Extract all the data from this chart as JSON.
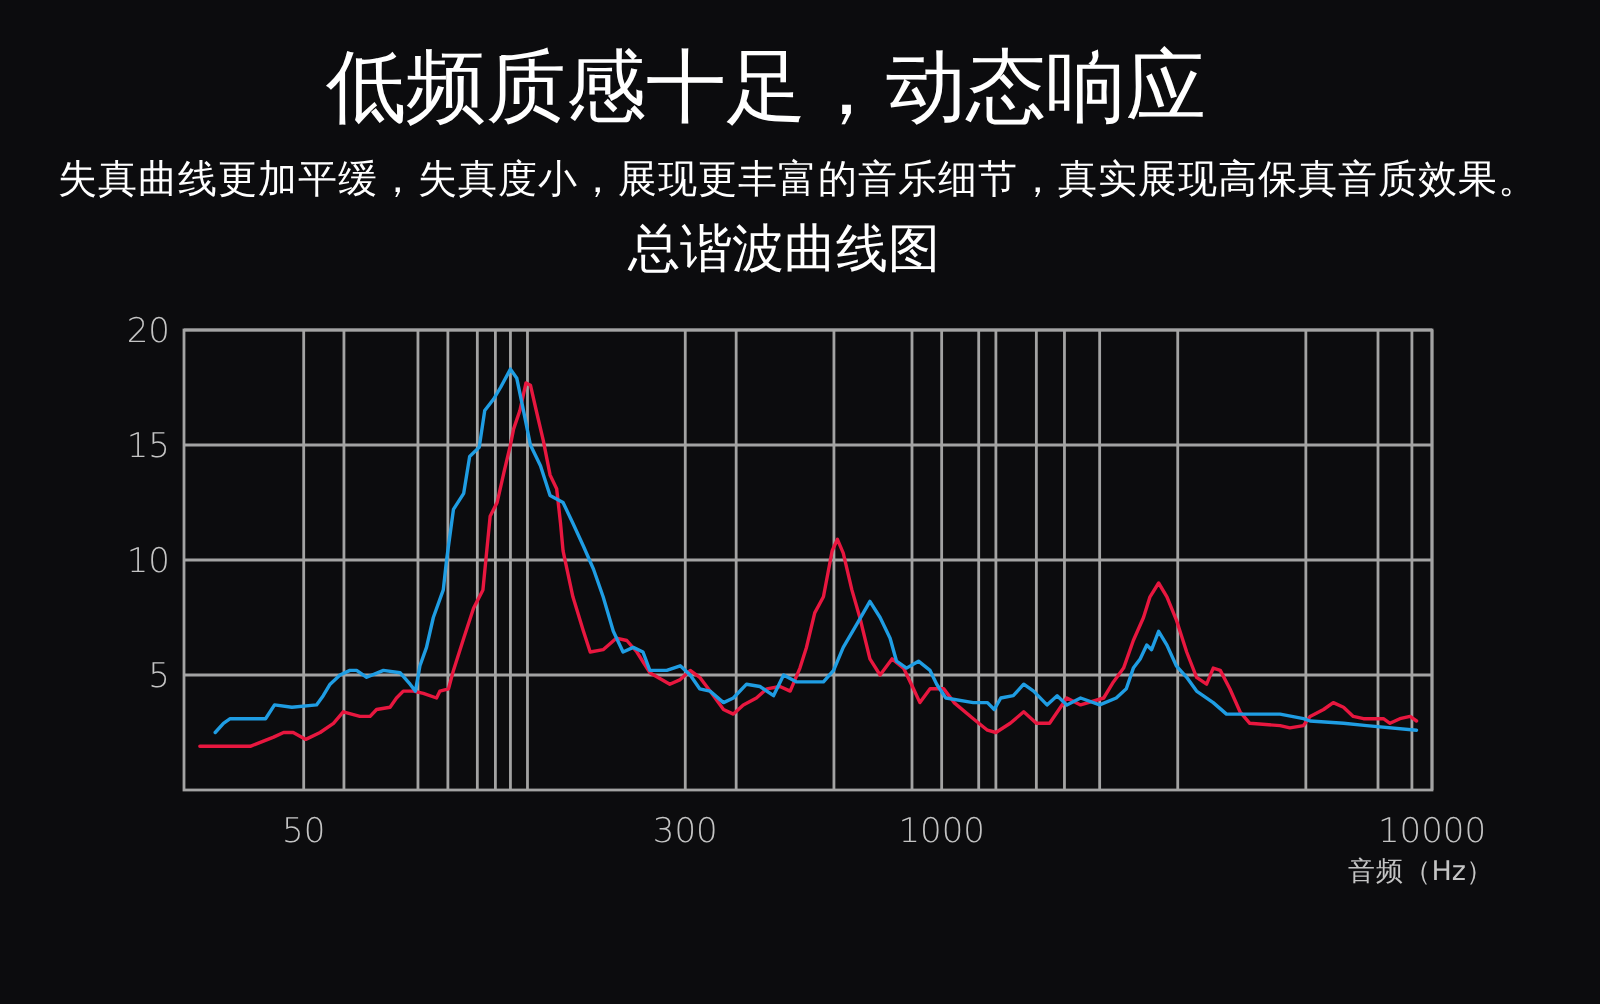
{
  "chart_data": {
    "type": "line",
    "title": "低频质感十足，动态响应",
    "subtitle": "失真曲线更加平缓，失真度小，展现更丰富的音乐细节，真实展现高保真音质效果。",
    "annotations": [
      "总谐波曲线图"
    ],
    "xlabel": "音频（Hz）",
    "log": "x",
    "grid": true,
    "xlim": [
      28.5,
      10000
    ],
    "xticks": [
      50,
      {
        "value": 60.4,
        "label": null
      },
      {
        "value": 85.5,
        "label": null
      },
      {
        "value": 98.4,
        "label": null
      },
      {
        "value": 113,
        "label": null
      },
      {
        "value": 123,
        "label": null
      },
      {
        "value": 132,
        "label": null
      },
      {
        "value": 143,
        "label": null
      },
      300,
      {
        "value": 381,
        "label": null
      },
      {
        "value": 603,
        "label": null
      },
      {
        "value": 870,
        "label": null
      },
      1000,
      {
        "value": 1190,
        "label": null
      },
      {
        "value": 1290,
        "label": null
      },
      {
        "value": 1560,
        "label": null
      },
      {
        "value": 1780,
        "label": null
      },
      {
        "value": 2100,
        "label": null
      },
      {
        "value": 3030,
        "label": null
      },
      {
        "value": 5530,
        "label": null
      },
      {
        "value": 7760,
        "label": null
      },
      {
        "value": 9100,
        "label": null
      },
      10000
    ],
    "ylim": [
      0,
      20
    ],
    "yticks": [
      5,
      10,
      15,
      20
    ],
    "series": [
      {
        "color": "#e8173f",
        "x": [
          30.7,
          38.9,
          43.4,
          45.5,
          47.6,
          50.5,
          54.0,
          57.5,
          60.2,
          65.1,
          68.3,
          70.4,
          75.0,
          77.3,
          79.8,
          83.7,
          87.7,
          93.3,
          94.8,
          98.7,
          101,
          106,
          111,
          116,
          120,
          124,
          128,
          132,
          134,
          138,
          142,
          145,
          149,
          154,
          159,
          164,
          167,
          169,
          177,
          186,
          192,
          204,
          217,
          228,
          239,
          254,
          279,
          293,
          307,
          321,
          337,
          359,
          376,
          394,
          419,
          440,
          468,
          491,
          514,
          530,
          551,
          574,
          598,
          613,
          630,
          656,
          681,
          714,
          749,
          792,
          836,
          876,
          903,
          947,
          1010,
          1060,
          1160,
          1240,
          1290,
          1380,
          1470,
          1560,
          1660,
          1800,
          1920,
          2140,
          2240,
          2350,
          2460,
          2580,
          2660,
          2770,
          2880,
          3010,
          3160,
          3310,
          3470,
          3580,
          3700,
          3870,
          4060,
          4250,
          4900,
          5130,
          5470,
          5640,
          6010,
          6290,
          6600,
          6910,
          7250,
          7960,
          8210,
          8600,
          9020,
          9300
        ],
        "values": [
          1.9,
          1.9,
          2.3,
          2.5,
          2.5,
          2.2,
          2.5,
          2.9,
          3.4,
          3.2,
          3.2,
          3.5,
          3.6,
          4.0,
          4.3,
          4.3,
          4.2,
          4.0,
          4.3,
          4.4,
          5.2,
          6.6,
          7.9,
          8.7,
          11.9,
          12.5,
          13.8,
          15.0,
          15.7,
          16.5,
          17.7,
          17.6,
          16.5,
          15.2,
          13.7,
          13.1,
          11.6,
          10.4,
          8.4,
          6.9,
          6.0,
          6.1,
          6.6,
          6.5,
          6.0,
          5.1,
          4.6,
          4.8,
          5.2,
          4.9,
          4.3,
          3.5,
          3.3,
          3.7,
          4.0,
          4.4,
          4.5,
          4.3,
          5.3,
          6.2,
          7.7,
          8.4,
          10.4,
          10.9,
          10.3,
          8.7,
          7.5,
          5.7,
          5.0,
          5.7,
          5.3,
          4.4,
          3.8,
          4.4,
          4.4,
          3.8,
          3.1,
          2.6,
          2.5,
          2.9,
          3.4,
          2.9,
          2.9,
          4.0,
          3.7,
          4.0,
          4.7,
          5.3,
          6.5,
          7.5,
          8.4,
          9.0,
          8.4,
          7.4,
          6.0,
          4.9,
          4.6,
          5.3,
          5.2,
          4.4,
          3.4,
          2.9,
          2.8,
          2.7,
          2.8,
          3.2,
          3.5,
          3.8,
          3.6,
          3.2,
          3.1,
          3.1,
          2.9,
          3.1,
          3.2,
          3.0
        ]
      },
      {
        "color": "#1f9de3",
        "x": [
          33.0,
          34.3,
          35.4,
          41.8,
          43.6,
          47.3,
          53.1,
          54.8,
          56.6,
          59.3,
          62.1,
          64.1,
          67.2,
          72.7,
          78.6,
          82.4,
          84.5,
          86.3,
          89.0,
          91.9,
          96.3,
          97.8,
          101,
          106,
          109,
          114,
          117,
          122,
          126,
          132,
          136,
          140,
          145,
          152,
          159,
          169,
          177,
          186,
          195,
          204,
          214,
          224,
          235,
          246,
          254,
          275,
          293,
          307,
          321,
          337,
          359,
          376,
          400,
          426,
          454,
          476,
          506,
          574,
          602,
          630,
          671,
          714,
          749,
          785,
          809,
          848,
          897,
          947,
          977,
          1020,
          1160,
          1240,
          1280,
          1320,
          1400,
          1470,
          1540,
          1640,
          1720,
          1800,
          1920,
          2100,
          2270,
          2380,
          2460,
          2540,
          2620,
          2680,
          2770,
          2880,
          3010,
          3160,
          3310,
          3580,
          3810,
          4900,
          5470,
          5640,
          6600,
          7360,
          9300
        ],
        "values": [
          2.5,
          2.9,
          3.1,
          3.1,
          3.7,
          3.6,
          3.7,
          4.1,
          4.6,
          5.0,
          5.2,
          5.2,
          4.9,
          5.2,
          5.1,
          4.6,
          4.3,
          5.4,
          6.2,
          7.5,
          8.7,
          10.0,
          12.2,
          12.9,
          14.5,
          14.9,
          16.5,
          17.0,
          17.5,
          18.3,
          17.9,
          16.6,
          15.0,
          14.1,
          12.8,
          12.5,
          11.6,
          10.6,
          9.6,
          8.4,
          6.9,
          6.0,
          6.2,
          6.0,
          5.2,
          5.2,
          5.4,
          5.0,
          4.4,
          4.3,
          3.8,
          4.0,
          4.6,
          4.5,
          4.1,
          5.0,
          4.7,
          4.7,
          5.2,
          6.2,
          7.2,
          8.2,
          7.5,
          6.6,
          5.6,
          5.3,
          5.6,
          5.2,
          4.6,
          4.0,
          3.8,
          3.8,
          3.5,
          4.0,
          4.1,
          4.6,
          4.3,
          3.7,
          4.1,
          3.7,
          4.0,
          3.7,
          4.0,
          4.4,
          5.3,
          5.7,
          6.3,
          6.1,
          6.9,
          6.3,
          5.4,
          4.9,
          4.3,
          3.8,
          3.3,
          3.3,
          3.1,
          3.0,
          2.9,
          2.8,
          2.6
        ]
      }
    ]
  }
}
